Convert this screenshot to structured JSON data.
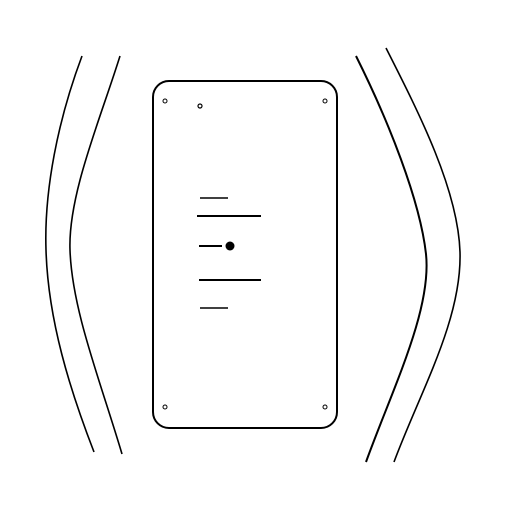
{
  "colors": {
    "background": "#ffffff",
    "stroke": "#000000"
  },
  "illustration": {
    "device": {
      "shape": "rounded-rectangle",
      "orientation": "portrait",
      "corner_screws": 4,
      "indicator_dot": true
    },
    "side_arcs": {
      "left_count": 2,
      "right_count": 2
    },
    "center_marks": {
      "dashes": 2,
      "long_lines": 2,
      "dot_with_line": 1
    }
  }
}
